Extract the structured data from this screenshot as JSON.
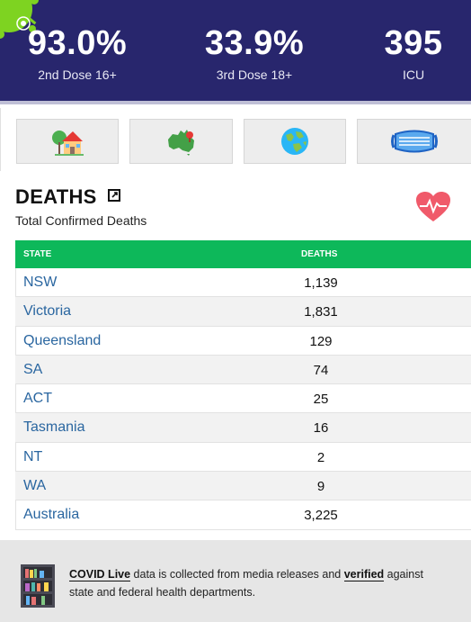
{
  "stats": [
    {
      "value": "93.0%",
      "label": "2nd Dose 16+"
    },
    {
      "value": "33.9%",
      "label": "3rd Dose 18+"
    },
    {
      "value": "395",
      "label": "ICU"
    }
  ],
  "nav": [
    {
      "icon": "house-icon"
    },
    {
      "icon": "australia-map-icon"
    },
    {
      "icon": "globe-icon"
    },
    {
      "icon": "face-mask-icon"
    }
  ],
  "deaths": {
    "title": "DEATHS",
    "subtitle": "Total Confirmed Deaths",
    "columns": {
      "state": "STATE",
      "deaths": "DEATHS"
    },
    "rows": [
      {
        "state": "NSW",
        "deaths": "1,139"
      },
      {
        "state": "Victoria",
        "deaths": "1,831"
      },
      {
        "state": "Queensland",
        "deaths": "129"
      },
      {
        "state": "SA",
        "deaths": "74"
      },
      {
        "state": "ACT",
        "deaths": "25"
      },
      {
        "state": "Tasmania",
        "deaths": "16"
      },
      {
        "state": "NT",
        "deaths": "2"
      },
      {
        "state": "WA",
        "deaths": "9"
      },
      {
        "state": "Australia",
        "deaths": "3,225"
      }
    ]
  },
  "footer": {
    "brand": "COVID Live",
    "text1": " data is collected from media releases and ",
    "link": "verified",
    "text2": " against state and federal health departments."
  },
  "colors": {
    "banner": "#28266d",
    "table_header": "#0db85a",
    "state_link": "#2a66a0",
    "virus": "#7ed321",
    "heart": "#f05a6a"
  }
}
